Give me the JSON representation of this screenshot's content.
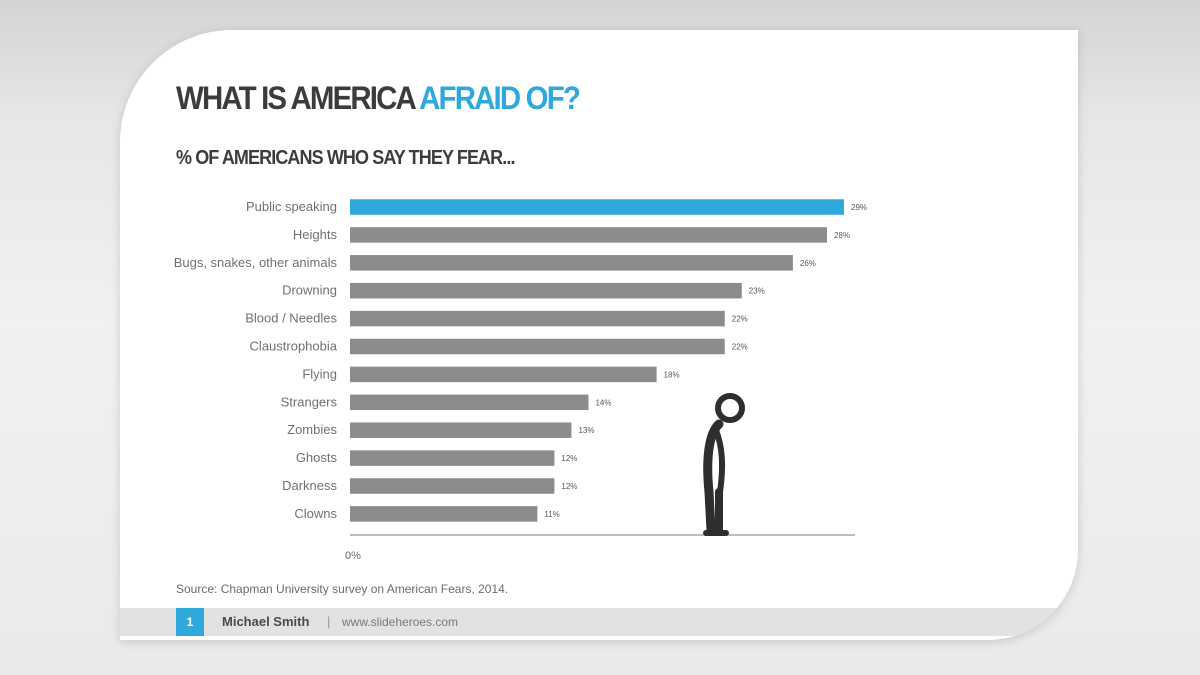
{
  "slide": {
    "title_main": "WHAT IS AMERICA ",
    "title_accent": "AFRAID OF?",
    "subtitle": "% OF AMERICANS WHO SAY THEY FEAR...",
    "source": "Source: Chapman University survey on American Fears, 2014.",
    "footer": {
      "page_number": "1",
      "author": "Michael Smith",
      "separator": "|",
      "website": "www.slideheroes.com"
    }
  },
  "colors": {
    "accent": "#2fa8dc",
    "bar": "#8c8c8c",
    "title": "#3c3c3c"
  },
  "chart_data": {
    "type": "bar",
    "orientation": "horizontal",
    "title": "% OF AMERICANS WHO SAY THEY FEAR...",
    "categories": [
      "Public speaking",
      "Heights",
      "Bugs, snakes, other animals",
      "Drowning",
      "Blood / Needles",
      "Claustrophobia",
      "Flying",
      "Strangers",
      "Zombies",
      "Ghosts",
      "Darkness",
      "Clowns"
    ],
    "values": [
      29,
      28,
      26,
      23,
      22,
      22,
      18,
      14,
      13,
      12,
      12,
      11
    ],
    "value_labels": [
      "29%",
      "28%",
      "26%",
      "23%",
      "22%",
      "22%",
      "18%",
      "14%",
      "13%",
      "12%",
      "12%",
      "11%"
    ],
    "highlight_index": 0,
    "x_tick_labels": [
      "0%"
    ],
    "xlim": [
      0,
      30
    ],
    "grid": false,
    "legend": "none"
  }
}
